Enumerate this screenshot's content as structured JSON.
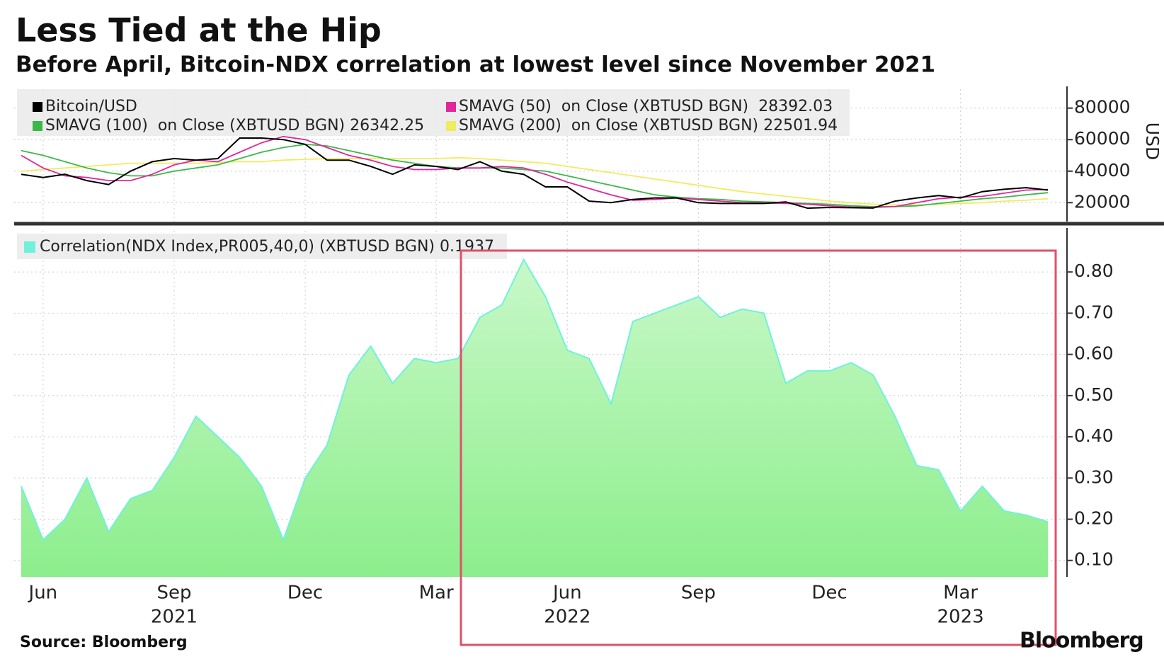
{
  "title": "Less Tied at the Hip",
  "subtitle": "Before April, Bitcoin-NDX correlation at lowest level since November 2021",
  "source": "Source: Bloomberg",
  "logo": "Bloomberg",
  "chart_data": [
    {
      "type": "line",
      "y_label": "USD",
      "grid": true,
      "ylim": [
        8000,
        92000
      ],
      "yticks": [
        20000,
        40000,
        60000,
        80000
      ],
      "series": [
        {
          "name": "Bitcoin/USD",
          "color": "#000000",
          "values": [
            38000,
            36000,
            38000,
            34000,
            31500,
            40000,
            46000,
            48000,
            47000,
            48000,
            61000,
            61000,
            60000,
            57000,
            47000,
            47000,
            43000,
            38000,
            44000,
            43000,
            41000,
            46000,
            40000,
            38000,
            30000,
            30000,
            21000,
            20000,
            22000,
            23000,
            23000,
            20000,
            19500,
            19500,
            19500,
            20500,
            16500,
            17000,
            16800,
            16600,
            21000,
            23000,
            24500,
            23000,
            27000,
            28500,
            29500,
            28000
          ]
        },
        {
          "name": "SMAVG (50)  on Close (XBTUSD BGN)  28392.03",
          "color": "#e0289a",
          "values": [
            50000,
            42000,
            37000,
            36000,
            34000,
            34000,
            38000,
            44000,
            47000,
            46000,
            52000,
            58000,
            62000,
            60000,
            55000,
            50000,
            47000,
            43000,
            41000,
            41000,
            42000,
            42000,
            43000,
            42000,
            38000,
            33000,
            29000,
            25000,
            21500,
            22000,
            23000,
            22000,
            21000,
            20000,
            19800,
            19500,
            19000,
            18000,
            17200,
            17000,
            17500,
            20000,
            22500,
            23500,
            24000,
            26000,
            28000,
            28392.03
          ]
        },
        {
          "name": "SMAVG (100)  on Close (XBTUSD BGN) 26342.25",
          "color": "#3cb84a",
          "values": [
            53000,
            50000,
            46000,
            42000,
            39000,
            37000,
            37000,
            40000,
            42000,
            44000,
            48000,
            52000,
            55000,
            57000,
            56000,
            53000,
            50000,
            47000,
            45000,
            43000,
            42000,
            42000,
            42000,
            41000,
            40000,
            37000,
            34000,
            31000,
            28000,
            25000,
            23500,
            22500,
            22000,
            21000,
            20500,
            20000,
            19500,
            19000,
            18000,
            17500,
            17500,
            18000,
            19500,
            21000,
            22500,
            23500,
            25000,
            26342.25
          ]
        },
        {
          "name": "SMAVG (200)  on Close (XBTUSD BGN) 22501.94",
          "color": "#f0ec60",
          "values": [
            40000,
            41000,
            42000,
            43000,
            44000,
            45000,
            45000,
            45000,
            45000,
            45500,
            46000,
            46000,
            47000,
            47500,
            48000,
            48000,
            48000,
            48000,
            48000,
            48000,
            48500,
            48000,
            47000,
            46000,
            45000,
            43000,
            41000,
            39000,
            37000,
            35000,
            33000,
            31000,
            29000,
            27000,
            25500,
            24000,
            22500,
            21000,
            20000,
            19000,
            18500,
            18500,
            19000,
            19500,
            20000,
            21000,
            21500,
            22501.94
          ]
        }
      ]
    },
    {
      "type": "area",
      "grid": true,
      "categories": [
        null,
        "Jun",
        null,
        null,
        null,
        null,
        null,
        "Sep",
        null,
        null,
        null,
        null,
        null,
        "Dec",
        null,
        null,
        null,
        null,
        null,
        "Mar",
        null,
        null,
        null,
        null,
        null,
        "Jun",
        null,
        null,
        null,
        null,
        null,
        "Sep",
        null,
        null,
        null,
        null,
        null,
        "Dec",
        null,
        null,
        null,
        null,
        null,
        "Mar",
        null,
        null,
        null,
        null
      ],
      "year_categories": [
        null,
        null,
        null,
        null,
        null,
        null,
        null,
        "2021",
        null,
        null,
        null,
        null,
        null,
        null,
        null,
        null,
        null,
        null,
        null,
        null,
        null,
        null,
        null,
        null,
        null,
        "2022",
        null,
        null,
        null,
        null,
        null,
        null,
        null,
        null,
        null,
        null,
        null,
        null,
        null,
        null,
        null,
        null,
        null,
        "2023",
        null,
        null,
        null,
        null
      ],
      "ylim": [
        0.06,
        0.9
      ],
      "yticks": [
        {
          "value": 0.1,
          "label": "0.10"
        },
        {
          "value": 0.2,
          "label": "0.20"
        },
        {
          "value": 0.3,
          "label": "0.30"
        },
        {
          "value": 0.4,
          "label": "0.40"
        },
        {
          "value": 0.5,
          "label": "0.50"
        },
        {
          "value": 0.6,
          "label": "0.60"
        },
        {
          "value": 0.7,
          "label": "0.70"
        },
        {
          "value": 0.8,
          "label": "0.80"
        }
      ],
      "series": [
        {
          "name": "Correlation(NDX Index,PR005,40,0) (XBTUSD BGN) 0.1937",
          "color": "#6ff2dc",
          "values": [
            0.28,
            0.15,
            0.2,
            0.3,
            0.17,
            0.25,
            0.27,
            0.35,
            0.45,
            0.4,
            0.35,
            0.28,
            0.15,
            0.3,
            0.38,
            0.55,
            0.62,
            0.53,
            0.59,
            0.58,
            0.59,
            0.69,
            0.72,
            0.83,
            0.74,
            0.61,
            0.59,
            0.48,
            0.68,
            0.7,
            0.72,
            0.74,
            0.69,
            0.71,
            0.7,
            0.53,
            0.56,
            0.56,
            0.58,
            0.55,
            0.45,
            0.33,
            0.32,
            0.22,
            0.28,
            0.22,
            0.21,
            0.1937
          ]
        }
      ]
    }
  ]
}
